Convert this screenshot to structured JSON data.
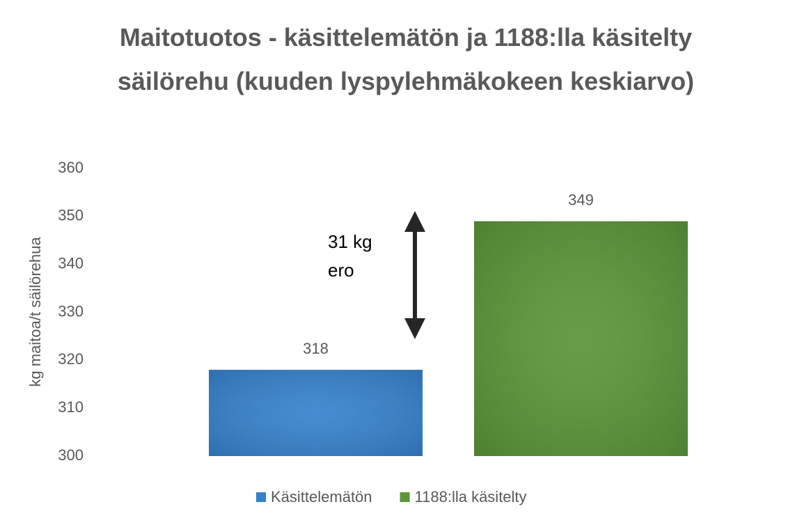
{
  "chart_data": {
    "type": "bar",
    "title": "Maitotuotos - käsittelemätön ja 1188:lla käsitelty säilörehu (kuuden lyspylehmäkokeen keskiarvo)",
    "y_label": "kg maitoa/t säilörehua",
    "categories": [
      null
    ],
    "series": [
      {
        "name": "Käsittelemätön",
        "color": "#3582cc",
        "values": [
          318
        ]
      },
      {
        "name": "1188:lla käsitelty",
        "color": "#5a9538",
        "values": [
          349
        ]
      }
    ],
    "annotation": [
      "31 kg",
      "ero"
    ],
    "ylim": [
      300,
      360
    ],
    "yticks": [
      300,
      310,
      320,
      330,
      340,
      350,
      360
    ],
    "grid": false,
    "legend": "bottom",
    "data_labels": true
  }
}
